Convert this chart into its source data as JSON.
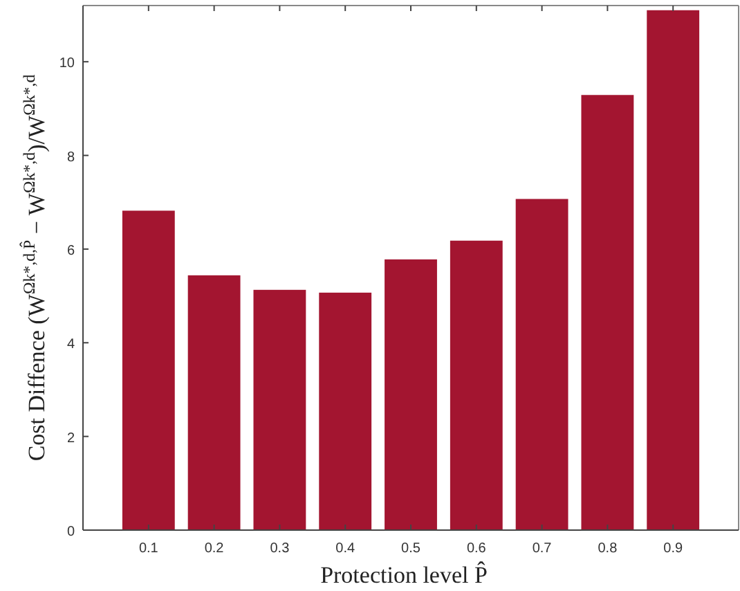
{
  "chart_data": {
    "type": "bar",
    "xlabel": "Protection level P̂",
    "ylabel": "Cost Diffence (W$^{Ωk*,d,P̂}$ − W$^{Ωk*,d}$)/W$^{Ωk*,d}$",
    "x": [
      0.1,
      0.2,
      0.3,
      0.4,
      0.5,
      0.6,
      0.7,
      0.8,
      0.9
    ],
    "values": [
      6.82,
      5.44,
      5.13,
      5.07,
      5.78,
      6.18,
      7.07,
      9.29,
      11.1
    ],
    "color": "#a31530",
    "xlim": [
      0,
      1
    ],
    "xticks": [
      0.1,
      0.2,
      0.3,
      0.4,
      0.5,
      0.6,
      0.7,
      0.8,
      0.9
    ],
    "ylim": [
      0,
      11.2
    ],
    "yticks": [
      0,
      2,
      4,
      6,
      8,
      10
    ],
    "grid": false
  }
}
